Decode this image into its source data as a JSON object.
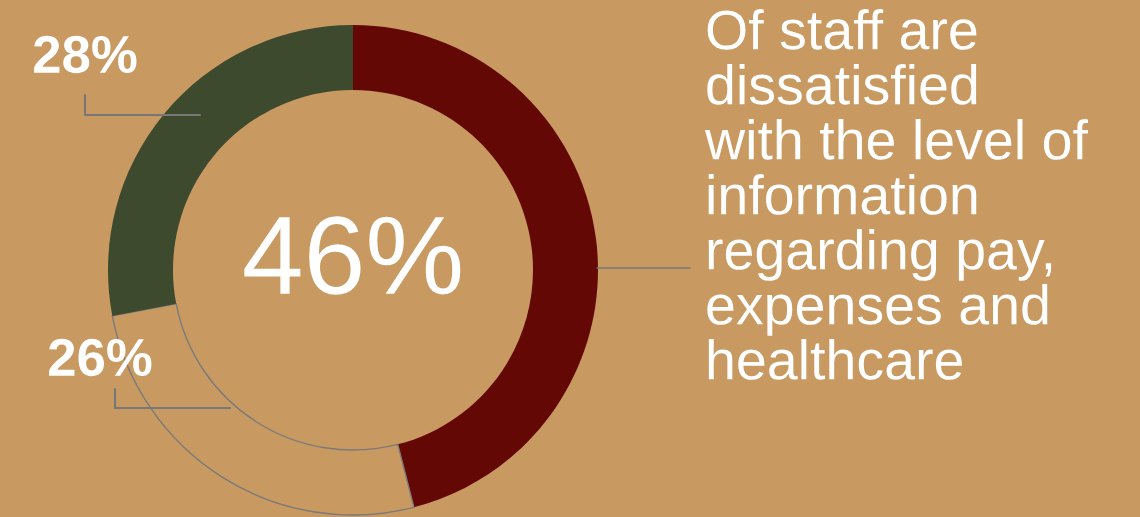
{
  "chart_data": {
    "type": "donut",
    "categories": [
      null,
      null,
      null
    ],
    "values": [
      46,
      26,
      28
    ],
    "colors": [
      "#640806",
      "#c89a62",
      "#3d4a2e"
    ],
    "value_labels": [
      "46%",
      "26%",
      "28%"
    ],
    "annotations": [
      "Of staff are\ndissatisfied\nwith the level of\ninformation\nregarding pay,\nexpenses and\nhealthcare"
    ]
  }
}
